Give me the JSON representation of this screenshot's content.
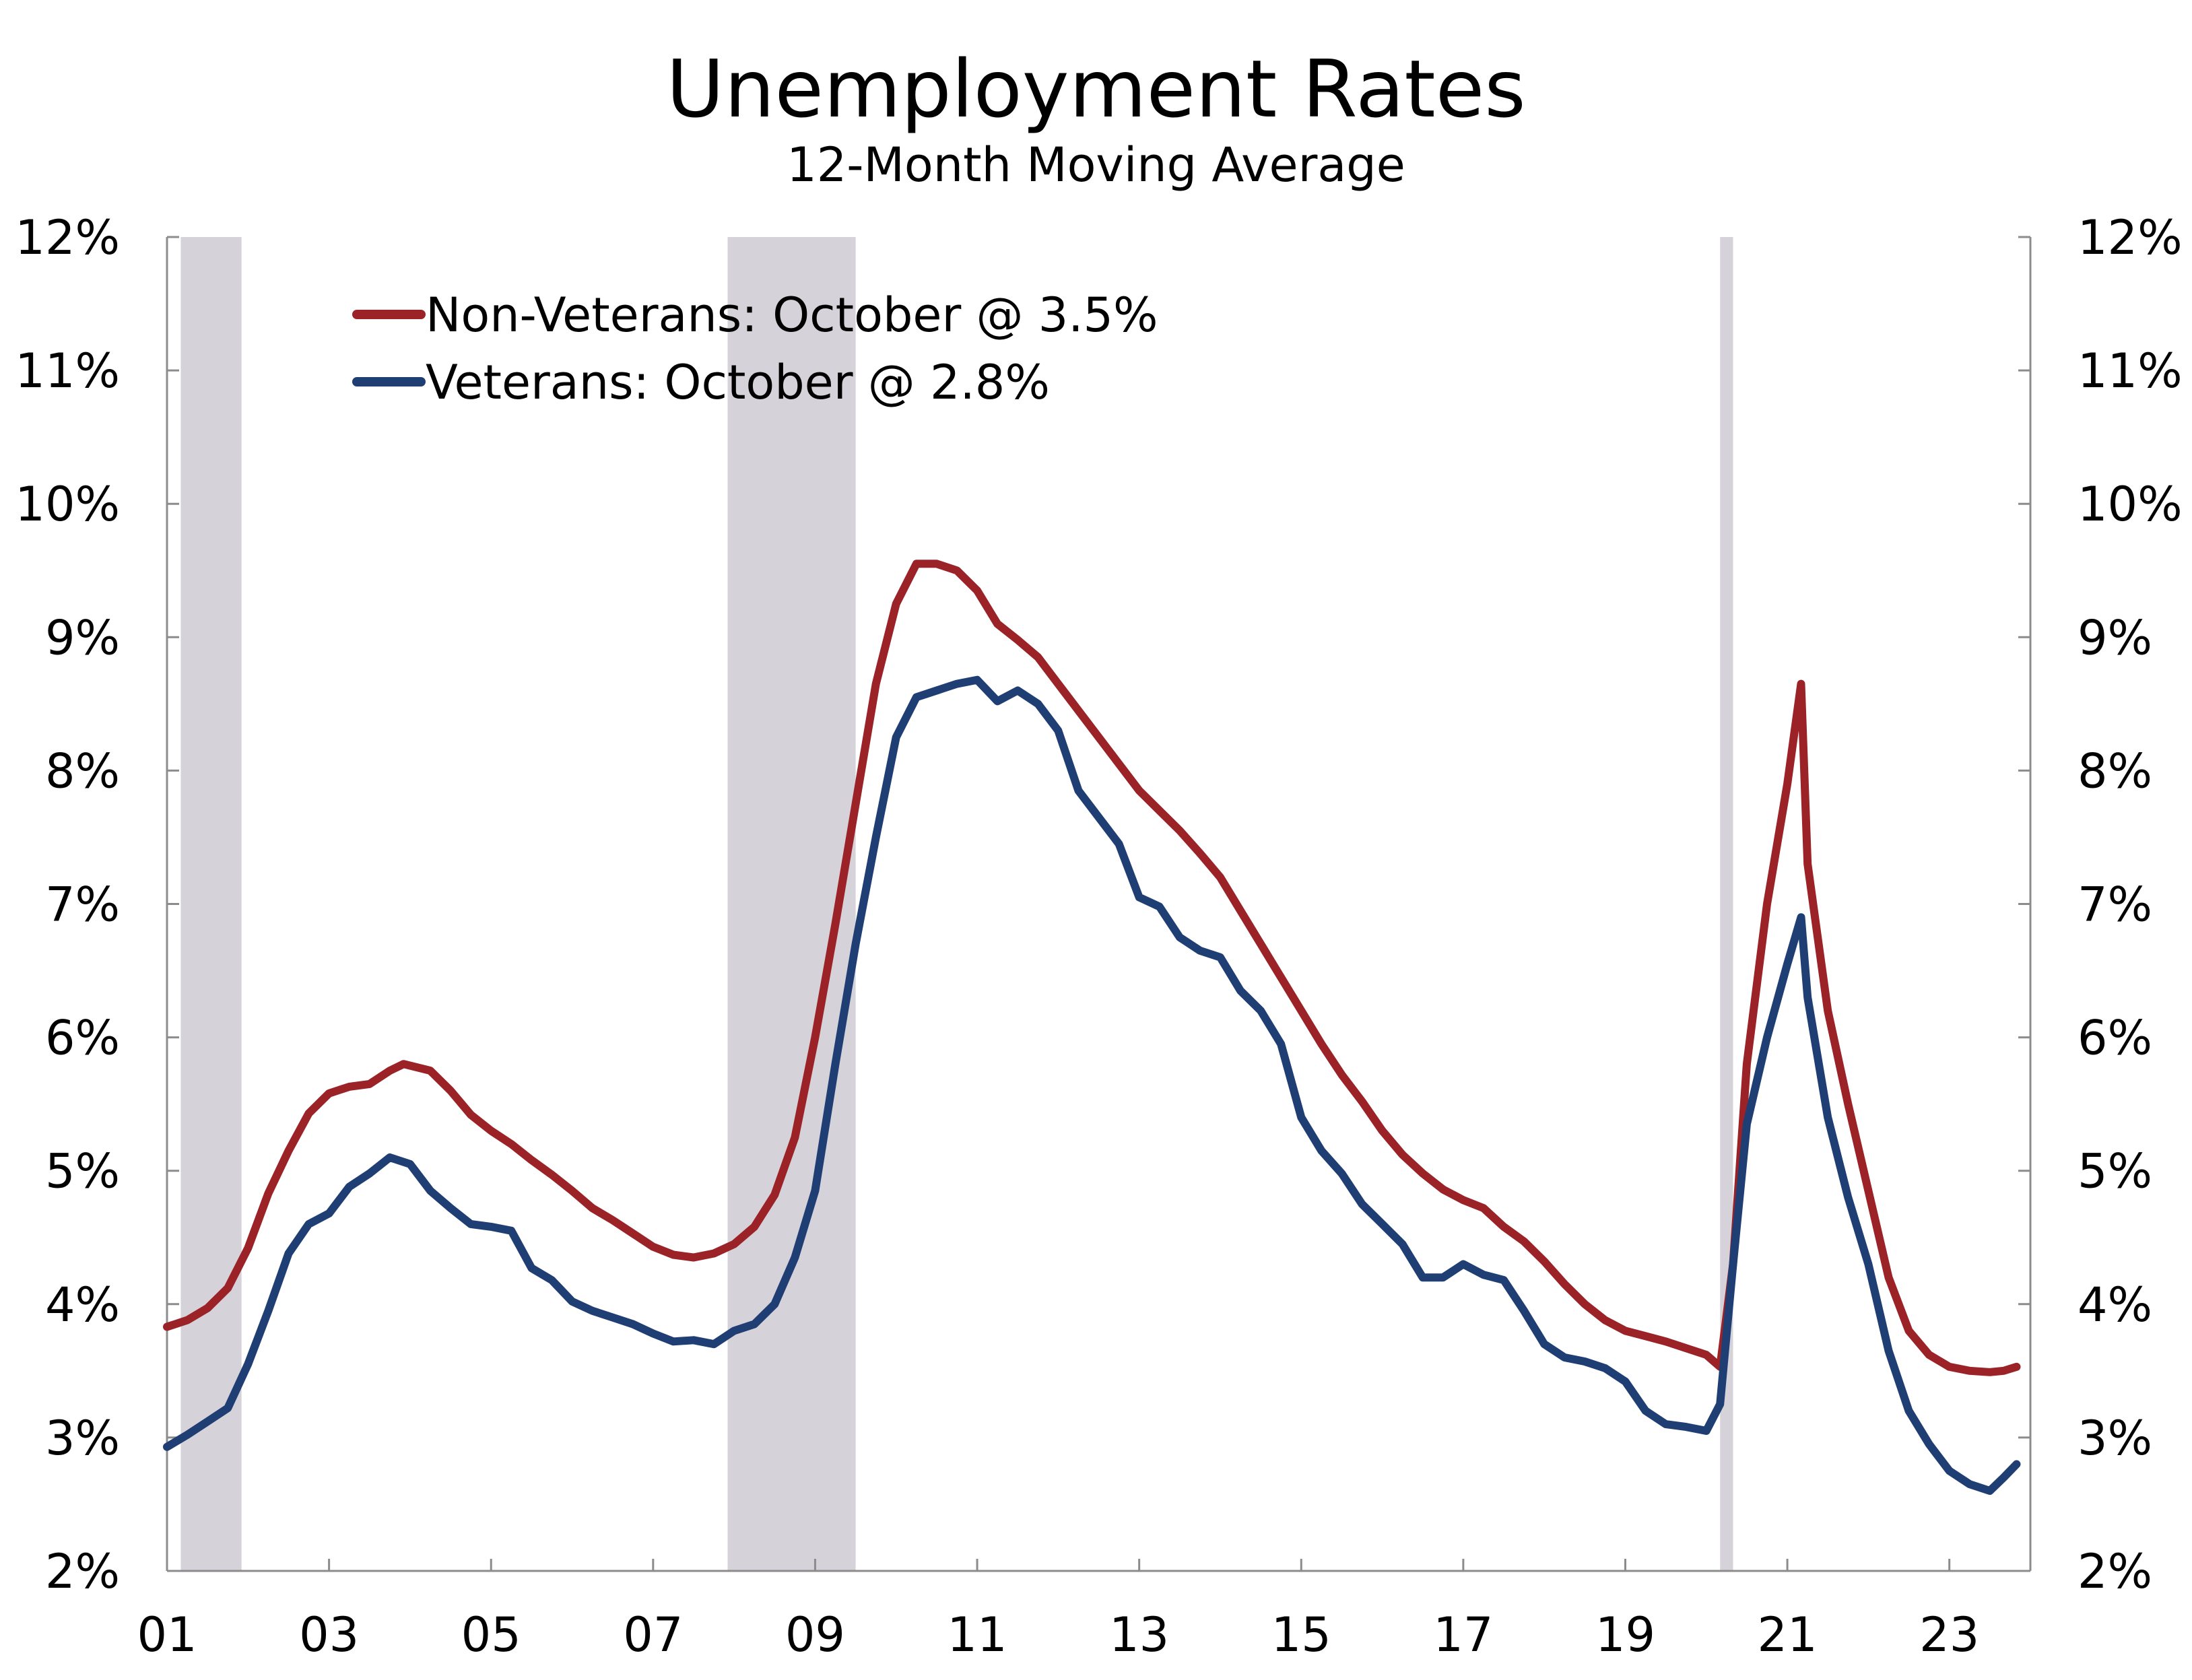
{
  "title": "Unemployment Rates",
  "subtitle": "12-Month Moving Average",
  "chart_data": {
    "type": "line",
    "title": "Unemployment Rates",
    "subtitle": "12-Month Moving Average",
    "xlim": [
      2001.0,
      2024.0
    ],
    "ylim": [
      2,
      12
    ],
    "y_ticks": [
      2,
      3,
      4,
      5,
      6,
      7,
      8,
      9,
      10,
      11,
      12
    ],
    "y_tick_labels": [
      "2%",
      "3%",
      "4%",
      "5%",
      "6%",
      "7%",
      "8%",
      "9%",
      "10%",
      "11%",
      "12%"
    ],
    "x_ticks": [
      2001,
      2003,
      2005,
      2007,
      2009,
      2011,
      2013,
      2015,
      2017,
      2019,
      2021,
      2023
    ],
    "x_tick_labels": [
      "01",
      "03",
      "05",
      "07",
      "09",
      "11",
      "13",
      "15",
      "17",
      "19",
      "21",
      "23"
    ],
    "grid": false,
    "dual_y_axis": true,
    "legend_position": "top-left",
    "recessions": [
      [
        2001.17,
        2001.92
      ],
      [
        2007.92,
        2009.5
      ],
      [
        2020.17,
        2020.33
      ]
    ],
    "recession_color": "#d6d2da",
    "series": [
      {
        "name": "Non-Veterans: October @ 3.5%",
        "color": "#9b2226",
        "points": [
          [
            2001.0,
            3.83
          ],
          [
            2001.25,
            3.88
          ],
          [
            2001.5,
            3.97
          ],
          [
            2001.75,
            4.12
          ],
          [
            2002.0,
            4.42
          ],
          [
            2002.25,
            4.83
          ],
          [
            2002.5,
            5.15
          ],
          [
            2002.75,
            5.43
          ],
          [
            2003.0,
            5.58
          ],
          [
            2003.25,
            5.63
          ],
          [
            2003.5,
            5.65
          ],
          [
            2003.75,
            5.75
          ],
          [
            2003.92,
            5.8
          ],
          [
            2004.25,
            5.75
          ],
          [
            2004.5,
            5.6
          ],
          [
            2004.75,
            5.42
          ],
          [
            2005.0,
            5.3
          ],
          [
            2005.25,
            5.2
          ],
          [
            2005.5,
            5.08
          ],
          [
            2005.75,
            4.97
          ],
          [
            2006.0,
            4.85
          ],
          [
            2006.25,
            4.72
          ],
          [
            2006.5,
            4.63
          ],
          [
            2006.75,
            4.53
          ],
          [
            2007.0,
            4.43
          ],
          [
            2007.25,
            4.37
          ],
          [
            2007.5,
            4.35
          ],
          [
            2007.75,
            4.38
          ],
          [
            2008.0,
            4.45
          ],
          [
            2008.25,
            4.58
          ],
          [
            2008.5,
            4.82
          ],
          [
            2008.75,
            5.25
          ],
          [
            2009.0,
            6.0
          ],
          [
            2009.25,
            6.85
          ],
          [
            2009.5,
            7.75
          ],
          [
            2009.75,
            8.65
          ],
          [
            2010.0,
            9.25
          ],
          [
            2010.25,
            9.55
          ],
          [
            2010.5,
            9.55
          ],
          [
            2010.75,
            9.5
          ],
          [
            2011.0,
            9.35
          ],
          [
            2011.25,
            9.1
          ],
          [
            2011.5,
            8.98
          ],
          [
            2011.75,
            8.85
          ],
          [
            2012.0,
            8.65
          ],
          [
            2012.25,
            8.45
          ],
          [
            2012.5,
            8.25
          ],
          [
            2012.75,
            8.05
          ],
          [
            2013.0,
            7.85
          ],
          [
            2013.25,
            7.7
          ],
          [
            2013.5,
            7.55
          ],
          [
            2013.75,
            7.38
          ],
          [
            2014.0,
            7.2
          ],
          [
            2014.25,
            6.95
          ],
          [
            2014.5,
            6.7
          ],
          [
            2014.75,
            6.45
          ],
          [
            2015.0,
            6.2
          ],
          [
            2015.25,
            5.95
          ],
          [
            2015.5,
            5.72
          ],
          [
            2015.75,
            5.52
          ],
          [
            2016.0,
            5.3
          ],
          [
            2016.25,
            5.12
          ],
          [
            2016.5,
            4.98
          ],
          [
            2016.75,
            4.86
          ],
          [
            2017.0,
            4.78
          ],
          [
            2017.25,
            4.72
          ],
          [
            2017.5,
            4.58
          ],
          [
            2017.75,
            4.47
          ],
          [
            2018.0,
            4.32
          ],
          [
            2018.25,
            4.15
          ],
          [
            2018.5,
            4.0
          ],
          [
            2018.75,
            3.88
          ],
          [
            2019.0,
            3.8
          ],
          [
            2019.25,
            3.76
          ],
          [
            2019.5,
            3.72
          ],
          [
            2019.75,
            3.67
          ],
          [
            2020.0,
            3.62
          ],
          [
            2020.17,
            3.53
          ],
          [
            2020.33,
            4.3
          ],
          [
            2020.5,
            5.8
          ],
          [
            2020.75,
            7.0
          ],
          [
            2021.0,
            7.9
          ],
          [
            2021.17,
            8.65
          ],
          [
            2021.25,
            7.3
          ],
          [
            2021.5,
            6.2
          ],
          [
            2021.75,
            5.5
          ],
          [
            2022.0,
            4.85
          ],
          [
            2022.25,
            4.2
          ],
          [
            2022.5,
            3.8
          ],
          [
            2022.75,
            3.62
          ],
          [
            2023.0,
            3.53
          ],
          [
            2023.25,
            3.5
          ],
          [
            2023.5,
            3.49
          ],
          [
            2023.67,
            3.5
          ],
          [
            2023.83,
            3.53
          ]
        ]
      },
      {
        "name": "Veterans: October @ 2.8%",
        "color": "#1f3e74",
        "points": [
          [
            2001.0,
            2.93
          ],
          [
            2001.25,
            3.02
          ],
          [
            2001.5,
            3.12
          ],
          [
            2001.75,
            3.22
          ],
          [
            2002.0,
            3.55
          ],
          [
            2002.25,
            3.95
          ],
          [
            2002.5,
            4.38
          ],
          [
            2002.75,
            4.6
          ],
          [
            2003.0,
            4.68
          ],
          [
            2003.25,
            4.88
          ],
          [
            2003.5,
            4.98
          ],
          [
            2003.75,
            5.1
          ],
          [
            2004.0,
            5.05
          ],
          [
            2004.25,
            4.85
          ],
          [
            2004.5,
            4.72
          ],
          [
            2004.75,
            4.6
          ],
          [
            2005.0,
            4.58
          ],
          [
            2005.25,
            4.55
          ],
          [
            2005.5,
            4.27
          ],
          [
            2005.75,
            4.18
          ],
          [
            2006.0,
            4.02
          ],
          [
            2006.25,
            3.95
          ],
          [
            2006.5,
            3.9
          ],
          [
            2006.75,
            3.85
          ],
          [
            2007.0,
            3.78
          ],
          [
            2007.25,
            3.72
          ],
          [
            2007.5,
            3.73
          ],
          [
            2007.75,
            3.7
          ],
          [
            2008.0,
            3.8
          ],
          [
            2008.25,
            3.85
          ],
          [
            2008.5,
            4.0
          ],
          [
            2008.75,
            4.35
          ],
          [
            2009.0,
            4.85
          ],
          [
            2009.25,
            5.8
          ],
          [
            2009.5,
            6.7
          ],
          [
            2009.75,
            7.5
          ],
          [
            2010.0,
            8.25
          ],
          [
            2010.25,
            8.55
          ],
          [
            2010.5,
            8.6
          ],
          [
            2010.75,
            8.65
          ],
          [
            2011.0,
            8.68
          ],
          [
            2011.25,
            8.52
          ],
          [
            2011.5,
            8.6
          ],
          [
            2011.75,
            8.5
          ],
          [
            2012.0,
            8.3
          ],
          [
            2012.25,
            7.85
          ],
          [
            2012.5,
            7.65
          ],
          [
            2012.75,
            7.45
          ],
          [
            2013.0,
            7.05
          ],
          [
            2013.25,
            6.98
          ],
          [
            2013.5,
            6.75
          ],
          [
            2013.75,
            6.65
          ],
          [
            2014.0,
            6.6
          ],
          [
            2014.25,
            6.35
          ],
          [
            2014.5,
            6.2
          ],
          [
            2014.75,
            5.95
          ],
          [
            2015.0,
            5.4
          ],
          [
            2015.25,
            5.15
          ],
          [
            2015.5,
            4.98
          ],
          [
            2015.75,
            4.75
          ],
          [
            2016.0,
            4.6
          ],
          [
            2016.25,
            4.45
          ],
          [
            2016.5,
            4.2
          ],
          [
            2016.75,
            4.2
          ],
          [
            2017.0,
            4.3
          ],
          [
            2017.25,
            4.22
          ],
          [
            2017.5,
            4.18
          ],
          [
            2017.75,
            3.95
          ],
          [
            2018.0,
            3.7
          ],
          [
            2018.25,
            3.6
          ],
          [
            2018.5,
            3.57
          ],
          [
            2018.75,
            3.52
          ],
          [
            2019.0,
            3.42
          ],
          [
            2019.25,
            3.2
          ],
          [
            2019.5,
            3.1
          ],
          [
            2019.75,
            3.08
          ],
          [
            2020.0,
            3.05
          ],
          [
            2020.17,
            3.25
          ],
          [
            2020.33,
            4.3
          ],
          [
            2020.5,
            5.35
          ],
          [
            2020.75,
            6.0
          ],
          [
            2021.0,
            6.55
          ],
          [
            2021.17,
            6.9
          ],
          [
            2021.25,
            6.3
          ],
          [
            2021.5,
            5.4
          ],
          [
            2021.75,
            4.8
          ],
          [
            2022.0,
            4.3
          ],
          [
            2022.25,
            3.65
          ],
          [
            2022.5,
            3.2
          ],
          [
            2022.75,
            2.95
          ],
          [
            2023.0,
            2.75
          ],
          [
            2023.25,
            2.65
          ],
          [
            2023.5,
            2.6
          ],
          [
            2023.67,
            2.7
          ],
          [
            2023.83,
            2.8
          ]
        ]
      }
    ]
  }
}
